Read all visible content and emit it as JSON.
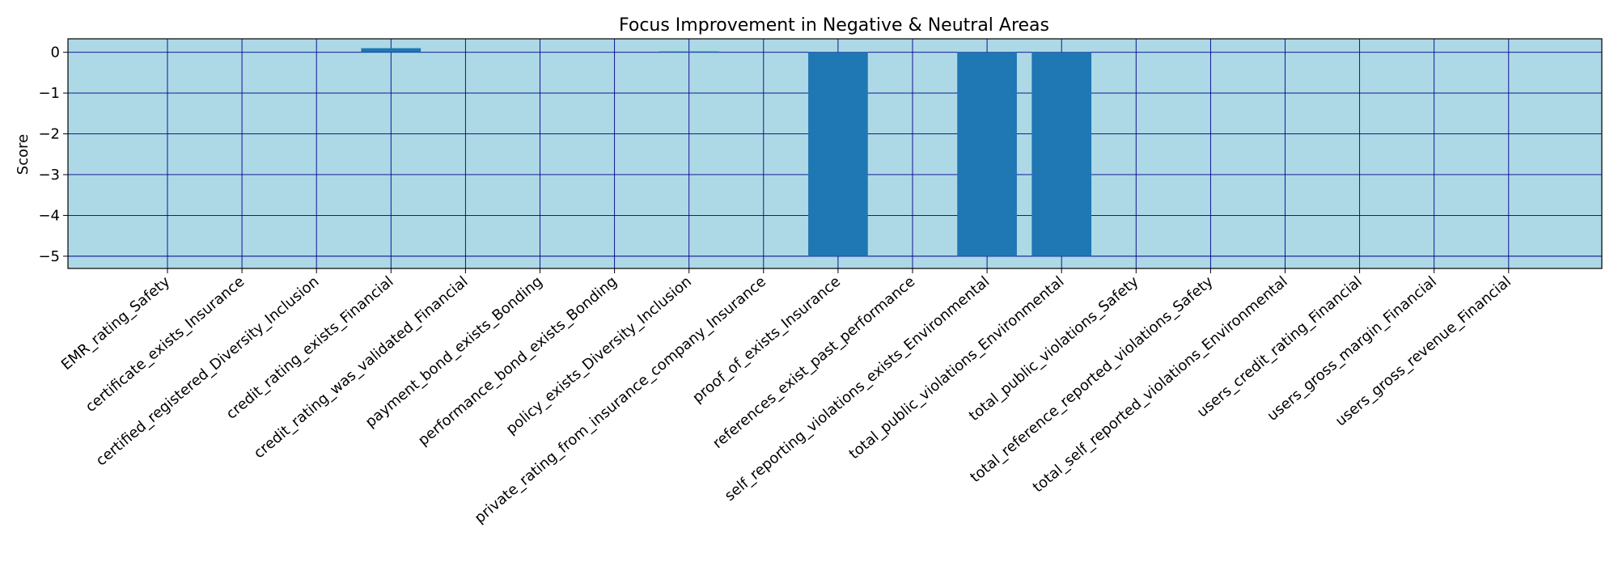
{
  "chart_data": {
    "type": "bar",
    "title": "Focus Improvement in Negative & Neutral Areas",
    "xlabel": "",
    "ylabel": "Score",
    "ylim": [
      -5.3,
      0.33
    ],
    "yticks": [
      0,
      -1,
      -2,
      -3,
      -4,
      -5
    ],
    "ytick_labels": [
      "0",
      "−1",
      "−2",
      "−3",
      "−4",
      "−5"
    ],
    "grid": true,
    "legend": "none",
    "colors": {
      "plot_background": "#add8e6",
      "bar": "#1f77b4",
      "grid": "#00008b",
      "axes": "#000000"
    },
    "categories": [
      "EMR_rating_Safety",
      "certificate_exists_Insurance",
      "certified_registered_Diversity_Inclusion",
      "credit_rating_exists_Financial",
      "credit_rating_was_validated_Financial",
      "payment_bond_exists_Bonding",
      "performance_bond_exists_Bonding",
      "policy_exists_Diversity_Inclusion",
      "private_rating_from_insurance_company_Insurance",
      "proof_of_exists_Insurance",
      "references_exist_past_performance",
      "self_reporting_violations_exists_Environmental",
      "total_public_violations_Environmental",
      "total_public_violations_Safety",
      "total_reference_reported_violations_Safety",
      "total_self_reported_violations_Environmental",
      "users_credit_rating_Financial",
      "users_gross_margin_Financial",
      "users_gross_revenue_Financial"
    ],
    "values": [
      0,
      0,
      0,
      0.1,
      0,
      0,
      0,
      0.02,
      0,
      -5,
      0,
      -5,
      -5,
      0,
      0,
      0,
      0,
      0,
      0
    ]
  }
}
